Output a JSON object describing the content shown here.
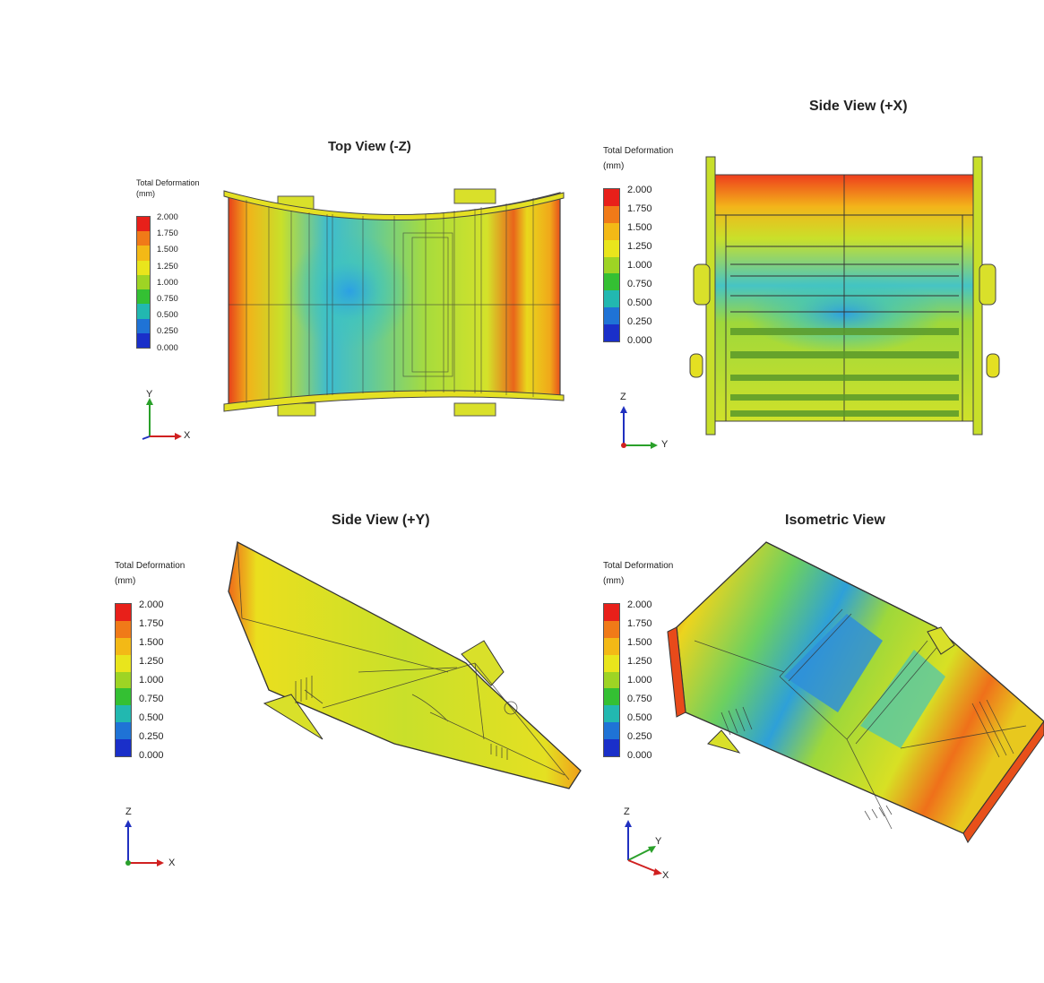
{
  "panels": {
    "top": {
      "title": "Top View (-Z)",
      "axes": [
        "Y",
        "X"
      ]
    },
    "sidex": {
      "title": "Side View (+X)",
      "axes": [
        "Z",
        "Y"
      ]
    },
    "sidey": {
      "title": "Side View (+Y)",
      "axes": [
        "Z",
        "X"
      ]
    },
    "iso": {
      "title": "Isometric View",
      "axes": [
        "Z",
        "Y",
        "X"
      ]
    }
  },
  "legend": {
    "title_line1": "Total Deformation",
    "title_line2": "(mm)",
    "values": [
      "2.000",
      "1.750",
      "1.500",
      "1.250",
      "1.000",
      "0.750",
      "0.500",
      "0.250",
      "0.000"
    ],
    "colors": [
      "#e8201a",
      "#f07a18",
      "#f3b916",
      "#e9e51c",
      "#9ed424",
      "#34c033",
      "#22b8b0",
      "#1f73d6",
      "#1a2fc9"
    ]
  }
}
